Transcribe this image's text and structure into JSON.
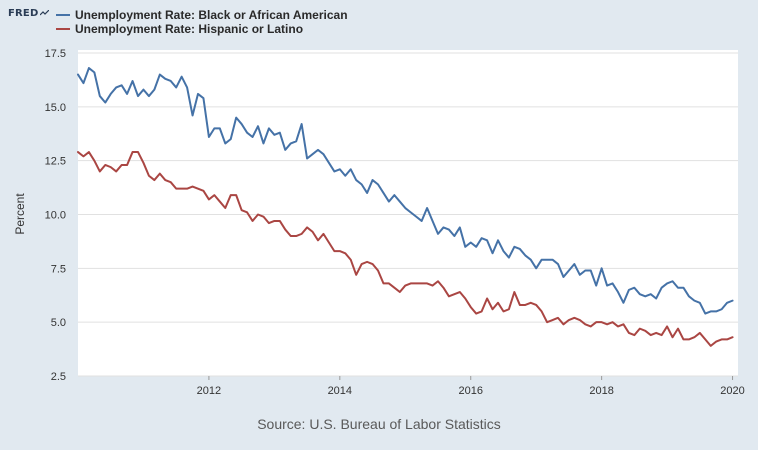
{
  "logo": {
    "text": "FRED"
  },
  "legend": [
    {
      "label": "Unemployment Rate: Black or African American",
      "color": "#4572a7"
    },
    {
      "label": "Unemployment Rate: Hispanic or Latino",
      "color": "#aa4643"
    }
  ],
  "source": "Source: U.S. Bureau of Labor Statistics",
  "chart_data": {
    "type": "line",
    "title": "",
    "xlabel": "",
    "ylabel": "Percent",
    "ylim": [
      2.5,
      17.5
    ],
    "yticks": [
      2.5,
      5.0,
      7.5,
      10.0,
      12.5,
      15.0,
      17.5
    ],
    "ytick_labels": [
      "2.5",
      "5.0",
      "7.5",
      "10.0",
      "12.5",
      "15.0",
      "17.5"
    ],
    "xlim": [
      2010.0,
      2020.0833
    ],
    "xticks": [
      2012,
      2014,
      2016,
      2018,
      2020
    ],
    "xtick_labels": [
      "2012",
      "2014",
      "2016",
      "2018",
      "2020"
    ],
    "grid": "horizontal",
    "legend_position": "top-left",
    "x_start": 2010.0,
    "x_step": 0.0833333,
    "series": [
      {
        "name": "Unemployment Rate: Black or African American",
        "color": "#4572a7",
        "values": [
          16.5,
          16.1,
          16.8,
          16.6,
          15.5,
          15.2,
          15.6,
          15.9,
          16.0,
          15.6,
          16.2,
          15.5,
          15.8,
          15.5,
          15.8,
          16.5,
          16.3,
          16.2,
          15.9,
          16.4,
          15.9,
          14.6,
          15.6,
          15.4,
          13.6,
          14.0,
          14.0,
          13.3,
          13.5,
          14.5,
          14.2,
          13.8,
          13.6,
          14.1,
          13.3,
          14.0,
          13.7,
          13.8,
          13.0,
          13.3,
          13.4,
          14.2,
          12.6,
          12.8,
          13.0,
          12.8,
          12.4,
          12.0,
          12.1,
          11.8,
          12.1,
          11.6,
          11.4,
          11.0,
          11.6,
          11.4,
          11.0,
          10.6,
          10.9,
          10.6,
          10.3,
          10.1,
          9.9,
          9.7,
          10.3,
          9.7,
          9.1,
          9.4,
          9.3,
          9.0,
          9.4,
          8.5,
          8.7,
          8.5,
          8.9,
          8.8,
          8.2,
          8.8,
          8.3,
          8.0,
          8.5,
          8.4,
          8.1,
          7.9,
          7.5,
          7.9,
          7.9,
          7.9,
          7.7,
          7.1,
          7.4,
          7.7,
          7.2,
          7.4,
          7.4,
          6.7,
          7.5,
          6.7,
          6.8,
          6.4,
          5.9,
          6.5,
          6.6,
          6.3,
          6.2,
          6.3,
          6.1,
          6.6,
          6.8,
          6.9,
          6.6,
          6.6,
          6.2,
          6.0,
          5.9,
          5.4,
          5.5,
          5.5,
          5.6,
          5.9,
          6.0
        ]
      },
      {
        "name": "Unemployment Rate: Hispanic or Latino",
        "color": "#aa4643",
        "values": [
          12.9,
          12.7,
          12.9,
          12.5,
          12.0,
          12.3,
          12.2,
          12.0,
          12.3,
          12.3,
          12.9,
          12.9,
          12.4,
          11.8,
          11.6,
          11.9,
          11.6,
          11.5,
          11.2,
          11.2,
          11.2,
          11.3,
          11.2,
          11.1,
          10.7,
          10.9,
          10.6,
          10.3,
          10.9,
          10.9,
          10.2,
          10.1,
          9.7,
          10.0,
          9.9,
          9.6,
          9.7,
          9.7,
          9.3,
          9.0,
          9.0,
          9.1,
          9.4,
          9.2,
          8.8,
          9.1,
          8.7,
          8.3,
          8.3,
          8.2,
          7.9,
          7.2,
          7.7,
          7.8,
          7.7,
          7.4,
          6.8,
          6.8,
          6.6,
          6.4,
          6.7,
          6.8,
          6.8,
          6.8,
          6.8,
          6.7,
          6.9,
          6.6,
          6.2,
          6.3,
          6.4,
          6.1,
          5.7,
          5.4,
          5.5,
          6.1,
          5.6,
          5.9,
          5.5,
          5.6,
          6.4,
          5.8,
          5.8,
          5.9,
          5.8,
          5.5,
          5.0,
          5.1,
          5.2,
          4.9,
          5.1,
          5.2,
          5.1,
          4.9,
          4.8,
          5.0,
          5.0,
          4.9,
          5.0,
          4.8,
          4.9,
          4.5,
          4.4,
          4.7,
          4.6,
          4.4,
          4.5,
          4.4,
          4.8,
          4.3,
          4.7,
          4.2,
          4.2,
          4.3,
          4.5,
          4.2,
          3.9,
          4.1,
          4.2,
          4.2,
          4.3
        ]
      }
    ]
  }
}
